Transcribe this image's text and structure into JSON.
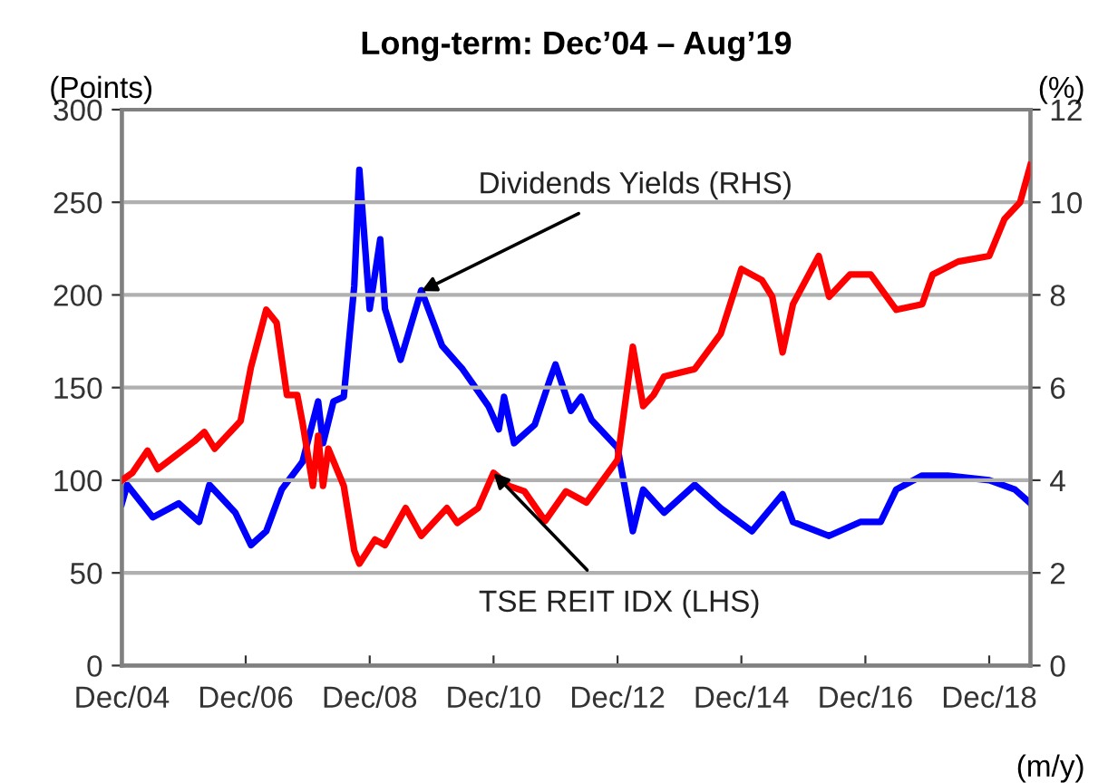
{
  "chart_data": {
    "type": "line",
    "title": "Long-term: Dec’04 – Aug’19",
    "ylabel": "(Points)",
    "y2label": "(%)",
    "xlabel": "(m/y)",
    "annotations": [
      {
        "text": "Dividends Yields (RHS)",
        "x": "2009-10",
        "y": 202
      },
      {
        "text": "TSE REIT IDX (LHS)",
        "x": "2010-12",
        "y": 104
      }
    ],
    "xlim": [
      "2004-12",
      "2019-08"
    ],
    "xticks": [
      {
        "value": "2004-12",
        "label": "Dec/04"
      },
      {
        "value": "2006-12",
        "label": "Dec/06"
      },
      {
        "value": "2008-12",
        "label": "Dec/08"
      },
      {
        "value": "2010-12",
        "label": "Dec/10"
      },
      {
        "value": "2012-12",
        "label": "Dec/12"
      },
      {
        "value": "2014-12",
        "label": "Dec/14"
      },
      {
        "value": "2016-12",
        "label": "Dec/16"
      },
      {
        "value": "2018-12",
        "label": "Dec/18"
      }
    ],
    "ylim": [
      0,
      300
    ],
    "yticks": [
      0,
      50,
      100,
      150,
      200,
      250,
      300
    ],
    "y2lim": [
      0,
      12
    ],
    "y2ticks": [
      0,
      2,
      4,
      6,
      8,
      10,
      12
    ],
    "grid": "y",
    "line_style": "solid",
    "marker": "none",
    "series": [
      {
        "color": "#0000ff",
        "axis": "y2",
        "x": [
          "2004-12",
          "2005-01",
          "2005-06",
          "2005-11",
          "2006-03",
          "2006-05",
          "2006-10",
          "2007-01",
          "2007-04",
          "2007-07",
          "2007-11",
          "2008-02",
          "2008-03",
          "2008-05",
          "2008-07",
          "2008-09",
          "2008-10",
          "2008-12",
          "2009-02",
          "2009-03",
          "2009-06",
          "2009-10",
          "2010-02",
          "2010-06",
          "2010-11",
          "2011-01",
          "2011-02",
          "2011-04",
          "2011-08",
          "2011-11",
          "2011-12",
          "2012-03",
          "2012-05",
          "2012-07",
          "2012-12",
          "2013-03",
          "2013-05",
          "2013-09",
          "2014-03",
          "2014-08",
          "2015-02",
          "2015-08",
          "2015-10",
          "2016-05",
          "2016-11",
          "2017-03",
          "2017-06",
          "2017-11",
          "2018-04",
          "2018-12",
          "2019-05",
          "2019-08"
        ],
        "values": [
          3.5,
          3.9,
          3.2,
          3.5,
          3.1,
          3.9,
          3.3,
          2.6,
          2.9,
          3.8,
          4.4,
          5.7,
          4.8,
          5.7,
          5.8,
          8.2,
          10.7,
          7.7,
          9.2,
          7.7,
          6.6,
          8.1,
          6.9,
          6.4,
          5.6,
          5.1,
          5.8,
          4.8,
          5.2,
          6.2,
          6.5,
          5.5,
          5.8,
          5.3,
          4.7,
          2.9,
          3.8,
          3.3,
          3.9,
          3.4,
          2.9,
          3.7,
          3.1,
          2.8,
          3.1,
          3.1,
          3.8,
          4.1,
          4.1,
          4.0,
          3.8,
          3.5
        ]
      },
      {
        "color": "#ff0000",
        "axis": "y",
        "x": [
          "2004-12",
          "2005-02",
          "2005-05",
          "2005-07",
          "2006-02",
          "2006-04",
          "2006-06",
          "2006-11",
          "2007-01",
          "2007-04",
          "2007-06",
          "2007-08",
          "2007-10",
          "2007-11",
          "2008-01",
          "2008-02",
          "2008-03",
          "2008-04",
          "2008-07",
          "2008-09",
          "2008-10",
          "2009-01",
          "2009-03",
          "2009-07",
          "2009-10",
          "2010-03",
          "2010-05",
          "2010-09",
          "2010-12",
          "2011-03",
          "2011-06",
          "2011-10",
          "2012-02",
          "2012-06",
          "2012-12",
          "2013-02",
          "2013-03",
          "2013-05",
          "2013-07",
          "2013-09",
          "2014-03",
          "2014-08",
          "2014-12",
          "2015-04",
          "2015-06",
          "2015-08",
          "2015-10",
          "2016-03",
          "2016-05",
          "2016-09",
          "2017-01",
          "2017-06",
          "2017-11",
          "2018-01",
          "2018-06",
          "2018-12",
          "2019-03",
          "2019-06",
          "2019-08"
        ],
        "values": [
          100,
          104,
          116,
          106,
          121,
          126,
          117,
          132,
          161,
          192,
          185,
          146,
          146,
          131,
          97,
          124,
          97,
          117,
          97,
          62,
          55,
          68,
          65,
          85,
          70,
          85,
          77,
          85,
          104,
          97,
          94,
          78,
          94,
          88,
          111,
          153,
          172,
          140,
          146,
          156,
          160,
          179,
          214,
          208,
          199,
          169,
          195,
          221,
          199,
          211,
          211,
          192,
          195,
          211,
          218,
          221,
          241,
          250,
          270
        ]
      }
    ]
  }
}
